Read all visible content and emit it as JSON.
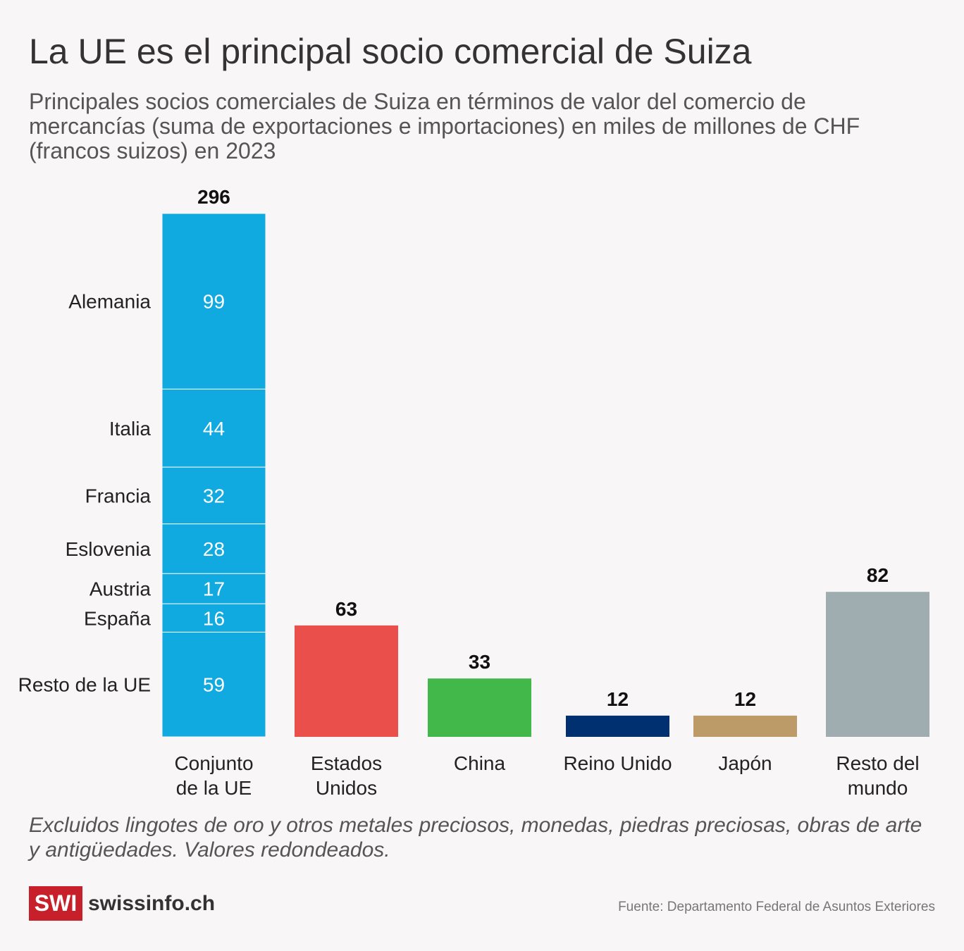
{
  "title": "La UE es el principal socio comercial de Suiza",
  "subtitle": "Principales socios comerciales de Suiza en términos de valor del comercio de mercancías (suma de exportaciones e importaciones) en miles de millones de CHF (francos suizos) en 2023",
  "note": "Excluidos lingotes de oro y otros metales preciosos, monedas, piedras preciosas, obras de arte y antigüedades. Valores redondeados.",
  "logo": {
    "badge": "SWI",
    "name": "swissinfo.ch"
  },
  "source": "Fuente: Departamento Federal de Asuntos Exteriores",
  "chart_data": {
    "type": "bar",
    "ylim": [
      0,
      296
    ],
    "categories": [
      [
        "Conjunto",
        "de la UE"
      ],
      [
        "Estados",
        "Unidos"
      ],
      [
        "China"
      ],
      [
        "Reino Unido"
      ],
      [
        "Japón"
      ],
      [
        "Resto del",
        "mundo"
      ]
    ],
    "values": [
      296,
      63,
      33,
      12,
      12,
      82
    ],
    "colors": [
      "#10a9e0",
      "#ea4f4b",
      "#42b84b",
      "#003070",
      "#bc9b69",
      "#9fadb0"
    ],
    "eu_breakdown": [
      {
        "name": "Alemania",
        "value": 99
      },
      {
        "name": "Italia",
        "value": 44
      },
      {
        "name": "Francia",
        "value": 32
      },
      {
        "name": "Eslovenia",
        "value": 28
      },
      {
        "name": "Austria",
        "value": 17
      },
      {
        "name": "España",
        "value": 16
      },
      {
        "name": "Resto de la UE",
        "value": 59
      }
    ]
  }
}
